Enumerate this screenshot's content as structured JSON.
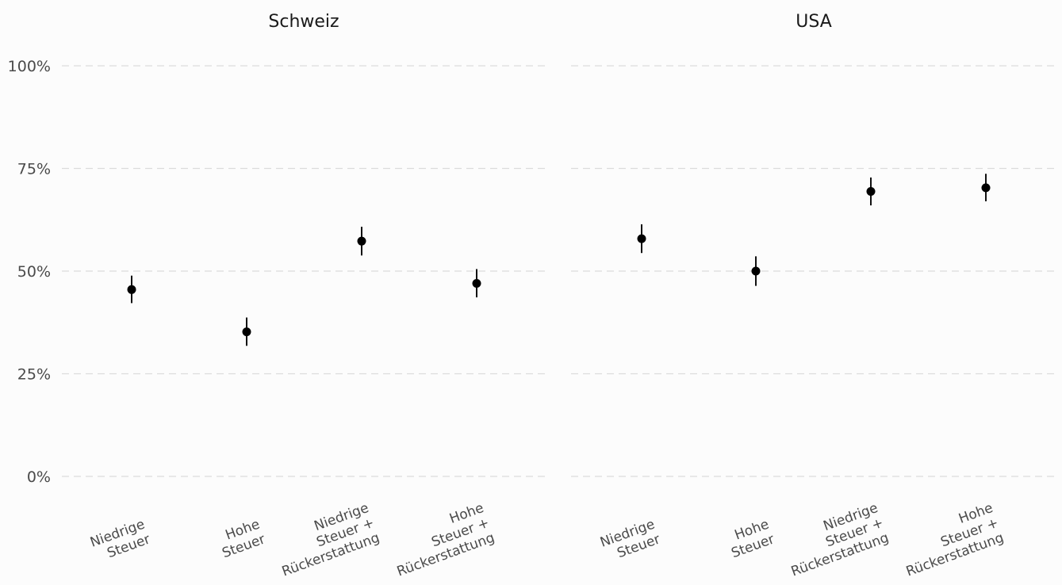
{
  "chart_data": {
    "type": "scatter",
    "subtype": "point-errorbar",
    "categories": [
      "Niedrige\nSteuer",
      "Hohe\nSteuer",
      "Niedrige\nSteuer +\nRückerstattung",
      "Hohe\nSteuer +\nRückerstattung"
    ],
    "ylim": [
      0,
      100
    ],
    "yticks": [
      0,
      25,
      50,
      75,
      100
    ],
    "ytick_labels": [
      "0%",
      "25%",
      "50%",
      "75%",
      "100%"
    ],
    "grid": "horizontal-dashed",
    "legend": "none",
    "point_color": "#000000",
    "facets": [
      {
        "title": "Schweiz",
        "values": [
          45.5,
          35.2,
          57.3,
          47.0
        ],
        "lower": [
          42.2,
          31.8,
          53.8,
          43.6
        ],
        "upper": [
          48.9,
          38.7,
          60.8,
          50.5
        ]
      },
      {
        "title": "USA",
        "values": [
          57.9,
          50.0,
          69.4,
          70.3
        ],
        "lower": [
          54.4,
          46.4,
          66.0,
          67.0
        ],
        "upper": [
          61.4,
          53.6,
          72.8,
          73.7
        ]
      }
    ]
  }
}
